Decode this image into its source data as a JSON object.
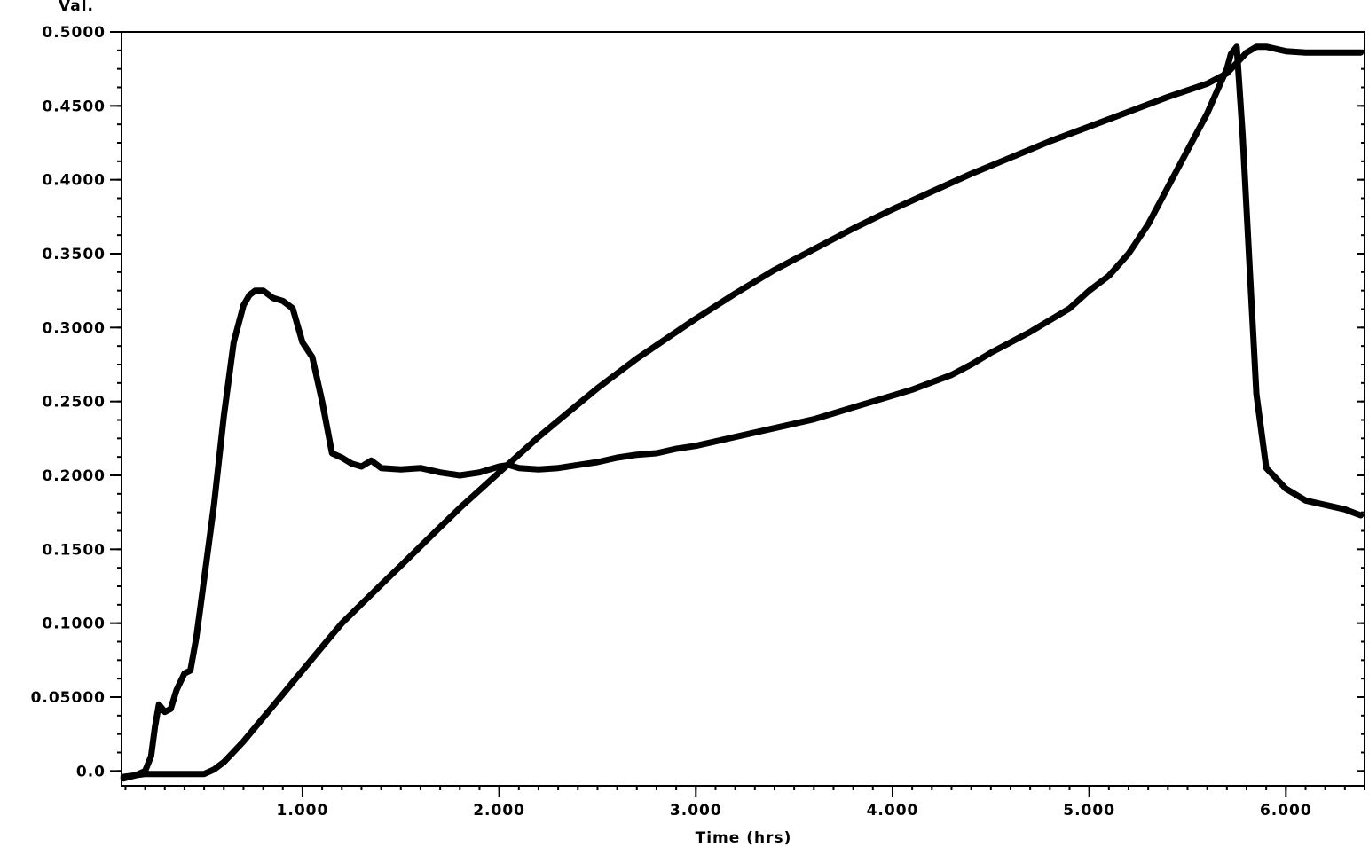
{
  "chart_data": {
    "type": "line",
    "title": "",
    "ylabel": "Val.",
    "xlabel": "Time (hrs)",
    "xlim": [
      0.08,
      6.4
    ],
    "ylim": [
      -0.01,
      0.5
    ],
    "xticks": [
      1.0,
      2.0,
      3.0,
      4.0,
      5.0,
      6.0
    ],
    "xtick_labels": [
      "1.000",
      "2.000",
      "3.000",
      "4.000",
      "5.000",
      "6.000"
    ],
    "yticks": [
      0.0,
      0.05,
      0.1,
      0.15,
      0.2,
      0.25,
      0.3,
      0.35,
      0.4,
      0.45,
      0.5
    ],
    "ytick_labels": [
      "0.0",
      "0.05000",
      "0.1000",
      "0.1500",
      "0.2000",
      "0.2500",
      "0.3000",
      "0.3500",
      "0.4000",
      "0.4500",
      "0.5000"
    ],
    "grid": false,
    "series": [
      {
        "x": [
          0.09,
          0.15,
          0.2,
          0.23,
          0.25,
          0.27,
          0.3,
          0.33,
          0.36,
          0.4,
          0.43,
          0.46,
          0.48,
          0.5,
          0.55,
          0.6,
          0.65,
          0.7,
          0.73,
          0.76,
          0.8,
          0.85,
          0.9,
          0.95,
          1.0,
          1.05,
          1.1,
          1.15,
          1.2,
          1.25,
          1.3,
          1.35,
          1.4,
          1.5,
          1.6,
          1.7,
          1.8,
          1.9,
          2.0,
          2.05,
          2.1,
          2.2,
          2.3,
          2.4,
          2.5,
          2.6,
          2.7,
          2.8,
          2.9,
          3.0,
          3.1,
          3.2,
          3.3,
          3.4,
          3.5,
          3.6,
          3.7,
          3.8,
          3.9,
          4.0,
          4.1,
          4.2,
          4.3,
          4.4,
          4.5,
          4.6,
          4.7,
          4.8,
          4.9,
          5.0,
          5.1,
          5.2,
          5.3,
          5.4,
          5.5,
          5.6,
          5.65,
          5.7,
          5.72,
          5.75,
          5.78,
          5.82,
          5.85,
          5.9,
          6.0,
          6.1,
          6.2,
          6.3,
          6.38
        ],
        "y": [
          -0.005,
          -0.003,
          0.0,
          0.01,
          0.03,
          0.045,
          0.04,
          0.042,
          0.055,
          0.066,
          0.068,
          0.09,
          0.11,
          0.13,
          0.18,
          0.24,
          0.29,
          0.315,
          0.322,
          0.325,
          0.325,
          0.32,
          0.318,
          0.313,
          0.29,
          0.28,
          0.25,
          0.215,
          0.212,
          0.208,
          0.206,
          0.21,
          0.205,
          0.204,
          0.205,
          0.202,
          0.2,
          0.202,
          0.206,
          0.207,
          0.205,
          0.204,
          0.205,
          0.207,
          0.209,
          0.212,
          0.214,
          0.215,
          0.218,
          0.22,
          0.223,
          0.226,
          0.229,
          0.232,
          0.235,
          0.238,
          0.242,
          0.246,
          0.25,
          0.254,
          0.258,
          0.263,
          0.268,
          0.275,
          0.283,
          0.29,
          0.297,
          0.305,
          0.313,
          0.325,
          0.335,
          0.35,
          0.37,
          0.395,
          0.42,
          0.445,
          0.46,
          0.475,
          0.485,
          0.49,
          0.43,
          0.33,
          0.255,
          0.205,
          0.191,
          0.183,
          0.18,
          0.177,
          0.173
        ]
      },
      {
        "x": [
          0.09,
          0.2,
          0.3,
          0.4,
          0.45,
          0.5,
          0.55,
          0.6,
          0.65,
          0.7,
          0.8,
          0.9,
          1.0,
          1.1,
          1.2,
          1.3,
          1.4,
          1.5,
          1.6,
          1.7,
          1.8,
          1.9,
          2.0,
          2.1,
          2.2,
          2.3,
          2.4,
          2.5,
          2.6,
          2.7,
          2.8,
          2.9,
          3.0,
          3.2,
          3.4,
          3.6,
          3.8,
          4.0,
          4.2,
          4.4,
          4.6,
          4.8,
          5.0,
          5.2,
          5.4,
          5.6,
          5.7,
          5.8,
          5.85,
          5.9,
          6.0,
          6.1,
          6.2,
          6.3,
          6.38
        ],
        "y": [
          -0.004,
          -0.002,
          -0.002,
          -0.002,
          -0.002,
          -0.002,
          0.001,
          0.006,
          0.013,
          0.02,
          0.036,
          0.052,
          0.068,
          0.084,
          0.1,
          0.113,
          0.126,
          0.139,
          0.152,
          0.165,
          0.178,
          0.19,
          0.202,
          0.214,
          0.226,
          0.237,
          0.248,
          0.259,
          0.269,
          0.279,
          0.288,
          0.297,
          0.306,
          0.323,
          0.339,
          0.353,
          0.367,
          0.38,
          0.392,
          0.404,
          0.415,
          0.426,
          0.436,
          0.446,
          0.456,
          0.465,
          0.472,
          0.486,
          0.49,
          0.49,
          0.487,
          0.486,
          0.486,
          0.486,
          0.486
        ]
      }
    ]
  }
}
